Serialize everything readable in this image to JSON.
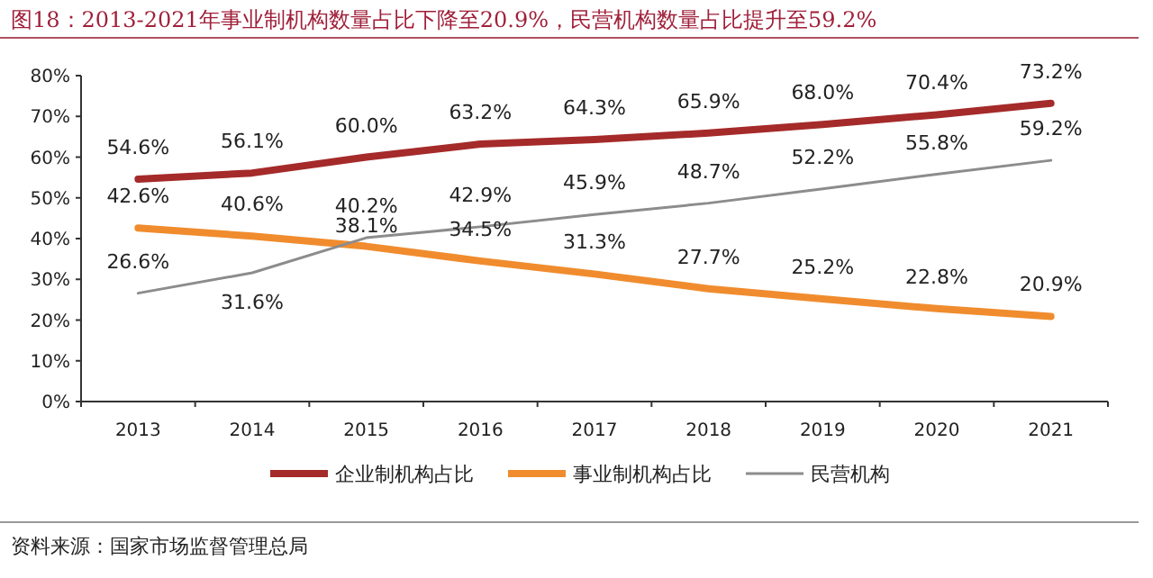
{
  "chart_data": {
    "type": "line",
    "title": "图18：2013-2021年事业制机构数量占比下降至20.9%，民营机构数量占比提升至59.2%",
    "annotations": [
      "资料来源：国家市场监督管理总局"
    ],
    "categories": [
      "2013",
      "2014",
      "2015",
      "2016",
      "2017",
      "2018",
      "2019",
      "2020",
      "2021"
    ],
    "series": [
      {
        "name": "企业制机构占比",
        "color": "#a52a2a",
        "values": [
          54.6,
          56.1,
          60.0,
          63.2,
          64.3,
          65.9,
          68.0,
          70.4,
          73.2
        ]
      },
      {
        "name": "事业制机构占比",
        "color": "#f08c2e",
        "values": [
          42.6,
          40.6,
          38.1,
          34.5,
          31.3,
          27.7,
          25.2,
          22.8,
          20.9
        ]
      },
      {
        "name": "民营机构",
        "color": "#8c8c8c",
        "values": [
          26.6,
          31.6,
          40.2,
          42.9,
          45.9,
          48.7,
          52.2,
          55.8,
          59.2
        ]
      }
    ],
    "ylim": [
      0,
      80
    ],
    "yticks": [
      {
        "value": 0,
        "label": "0%"
      },
      {
        "value": 10,
        "label": "10%"
      },
      {
        "value": 20,
        "label": "20%"
      },
      {
        "value": 30,
        "label": "30%"
      },
      {
        "value": 40,
        "label": "40%"
      },
      {
        "value": 50,
        "label": "50%"
      },
      {
        "value": 60,
        "label": "60%"
      },
      {
        "value": 70,
        "label": "70%"
      },
      {
        "value": 80,
        "label": "80%"
      }
    ],
    "value_labels": [
      [
        "54.6%",
        "56.1%",
        "60.0%",
        "63.2%",
        "64.3%",
        "65.9%",
        "68.0%",
        "70.4%",
        "73.2%"
      ],
      [
        "42.6%",
        "40.6%",
        "38.1%",
        "34.5%",
        "31.3%",
        "27.7%",
        "25.2%",
        "22.8%",
        "20.9%"
      ],
      [
        "26.6%",
        "31.6%",
        "40.2%",
        "42.9%",
        "45.9%",
        "48.7%",
        "52.2%",
        "55.8%",
        "59.2%"
      ]
    ],
    "legend": "bottom",
    "grid": false,
    "marker": "none",
    "line_style": "solid"
  }
}
